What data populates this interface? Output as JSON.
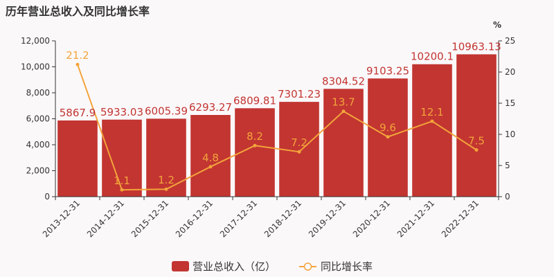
{
  "chart_data": {
    "type": "bar",
    "title": "历年营业总收入及同比增长率",
    "categories": [
      "2013-12-31",
      "2014-12-31",
      "2015-12-31",
      "2016-12-31",
      "2017-12-31",
      "2018-12-31",
      "2019-12-31",
      "2020-12-31",
      "2021-12-31",
      "2022-12-31"
    ],
    "series": [
      {
        "name": "营业总收入（亿）",
        "type": "bar",
        "axis": "left",
        "color": "#c23531",
        "values": [
          5867.9,
          5933.03,
          6005.39,
          6293.27,
          6809.81,
          7301.23,
          8304.52,
          9103.25,
          10200.1,
          10963.13
        ],
        "labels": [
          "5867.9",
          "5933.03",
          "6005.39",
          "6293.27",
          "6809.81",
          "7301.23",
          "8304.52",
          "9103.25",
          "10200.1",
          "10963.13"
        ]
      },
      {
        "name": "同比增长率",
        "type": "line",
        "axis": "right",
        "color": "#f3a43b",
        "values": [
          21.2,
          1.1,
          1.2,
          4.8,
          8.2,
          7.2,
          13.7,
          9.6,
          12.1,
          7.5
        ],
        "labels": [
          "21.2",
          "1.1",
          "1.2",
          "4.8",
          "8.2",
          "7.2",
          "13.7",
          "9.6",
          "12.1",
          "7.5"
        ]
      }
    ],
    "y_left": {
      "min": 0,
      "max": 12000,
      "ticks": [
        0,
        2000,
        4000,
        6000,
        8000,
        10000,
        12000
      ],
      "tick_labels": [
        "0",
        "2,000",
        "4,000",
        "6,000",
        "8,000",
        "10,000",
        "12,000"
      ]
    },
    "y_right": {
      "min": 0,
      "max": 25,
      "ticks": [
        0,
        5,
        10,
        15,
        20,
        25
      ],
      "tick_labels": [
        "0",
        "5",
        "10",
        "15",
        "20",
        "25"
      ],
      "unit": "%"
    },
    "grid": false,
    "legend_position": "bottom"
  }
}
